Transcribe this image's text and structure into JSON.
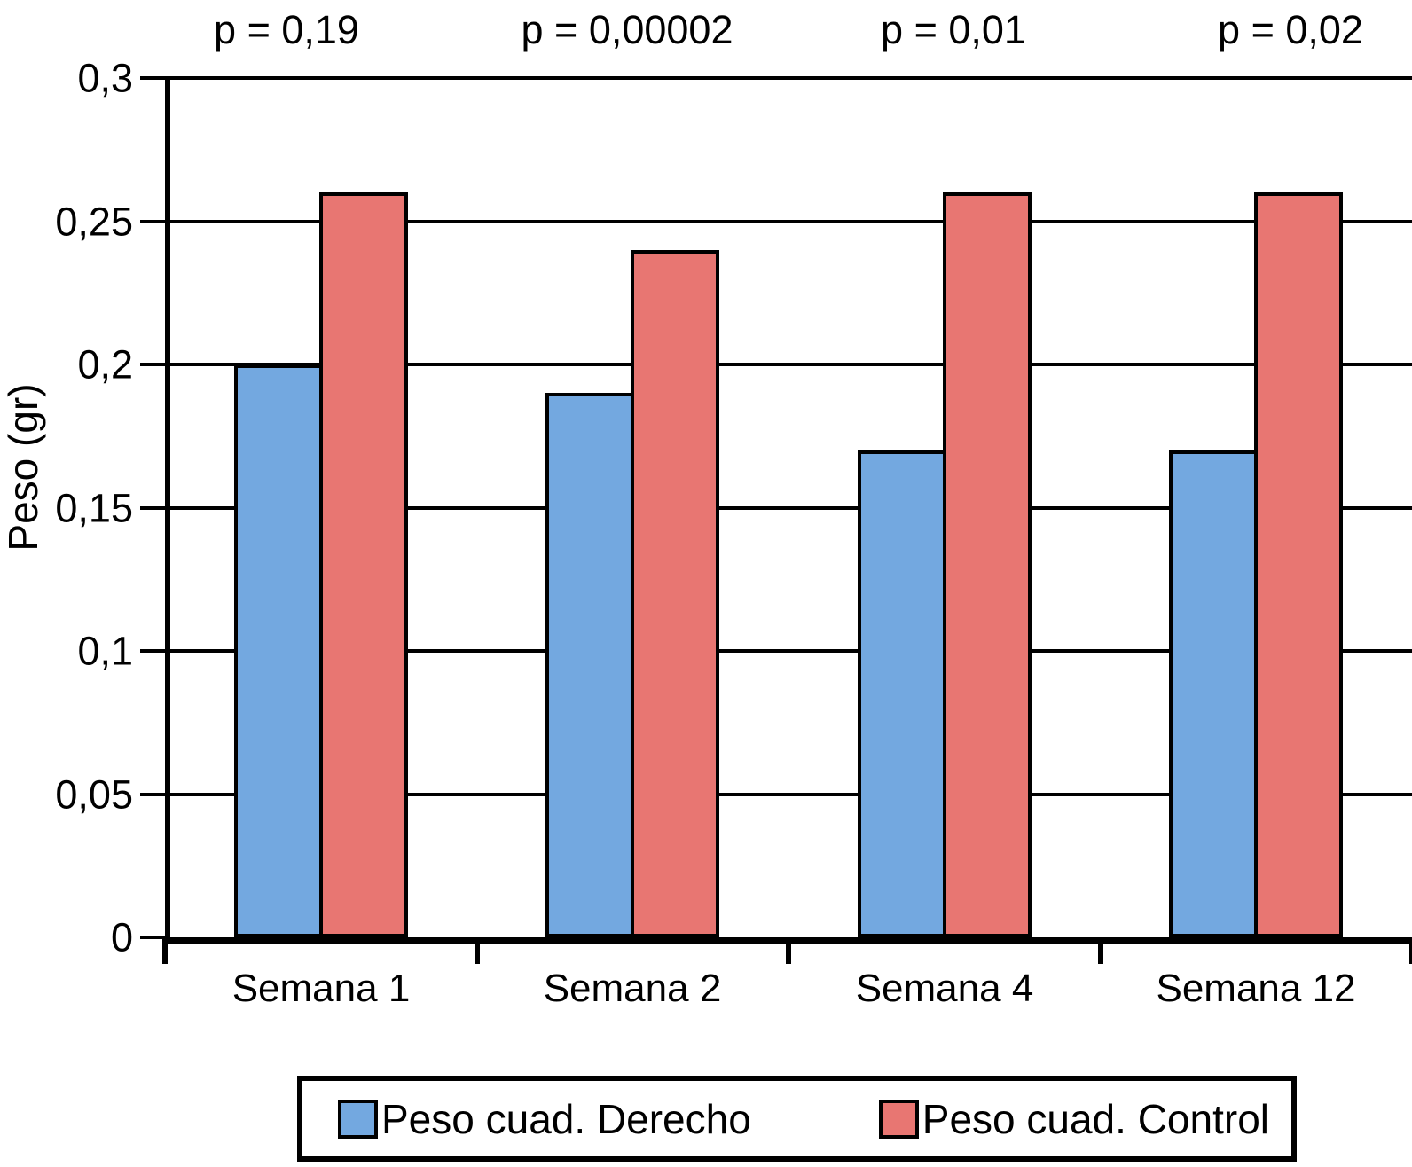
{
  "chart_data": {
    "type": "bar",
    "title": "",
    "ylabel": "Peso (gr)",
    "xlabel": "",
    "ymax": 0.3,
    "grid": true,
    "legend_position": "bottom",
    "axis_color": "#000000",
    "background_color": "#ffffff",
    "yticks": [
      {
        "value": 0,
        "label": "0"
      },
      {
        "value": 0.05,
        "label": "0,05"
      },
      {
        "value": 0.1,
        "label": "0,1"
      },
      {
        "value": 0.15,
        "label": "0,15"
      },
      {
        "value": 0.2,
        "label": "0,2"
      },
      {
        "value": 0.25,
        "label": "0,25"
      },
      {
        "value": 0.3,
        "label": "0,3"
      }
    ],
    "categories": [
      "Semana 1",
      "Semana 2",
      "Semana 4",
      "Semana 12"
    ],
    "series": [
      {
        "name": "Peso cuad. Derecho",
        "color": "#73A8E0",
        "values": [
          0.2,
          0.19,
          0.17,
          0.17
        ]
      },
      {
        "name": "Peso cuad. Control",
        "color": "#E87672",
        "values": [
          0.26,
          0.24,
          0.26,
          0.26
        ]
      }
    ],
    "p_values": [
      "p = 0,19",
      "p = 0,00002",
      "p = 0,01",
      "p = 0,02"
    ]
  }
}
